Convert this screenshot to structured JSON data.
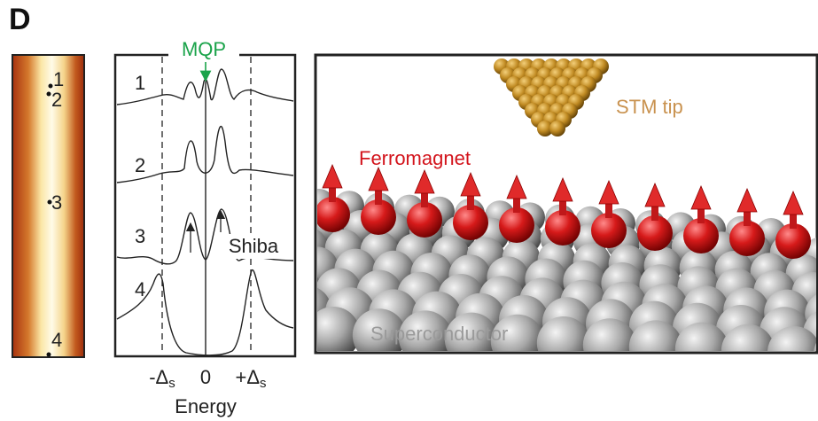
{
  "panel_label": "D",
  "map": {
    "points": [
      "1",
      "2",
      "3",
      "4"
    ]
  },
  "spectra": {
    "labels": [
      "1",
      "2",
      "3",
      "4"
    ],
    "peak_label": "MQP",
    "state_label": "Shiba",
    "x_labels": [
      {
        "main": "-Δ",
        "sub": "s"
      },
      {
        "main": "0"
      },
      {
        "main": "+Δ",
        "sub": "s"
      }
    ],
    "x_title": "Energy"
  },
  "scene": {
    "tip_label": "STM tip",
    "chain_label": "Ferromagnet",
    "substrate_label": "Superconductor"
  }
}
